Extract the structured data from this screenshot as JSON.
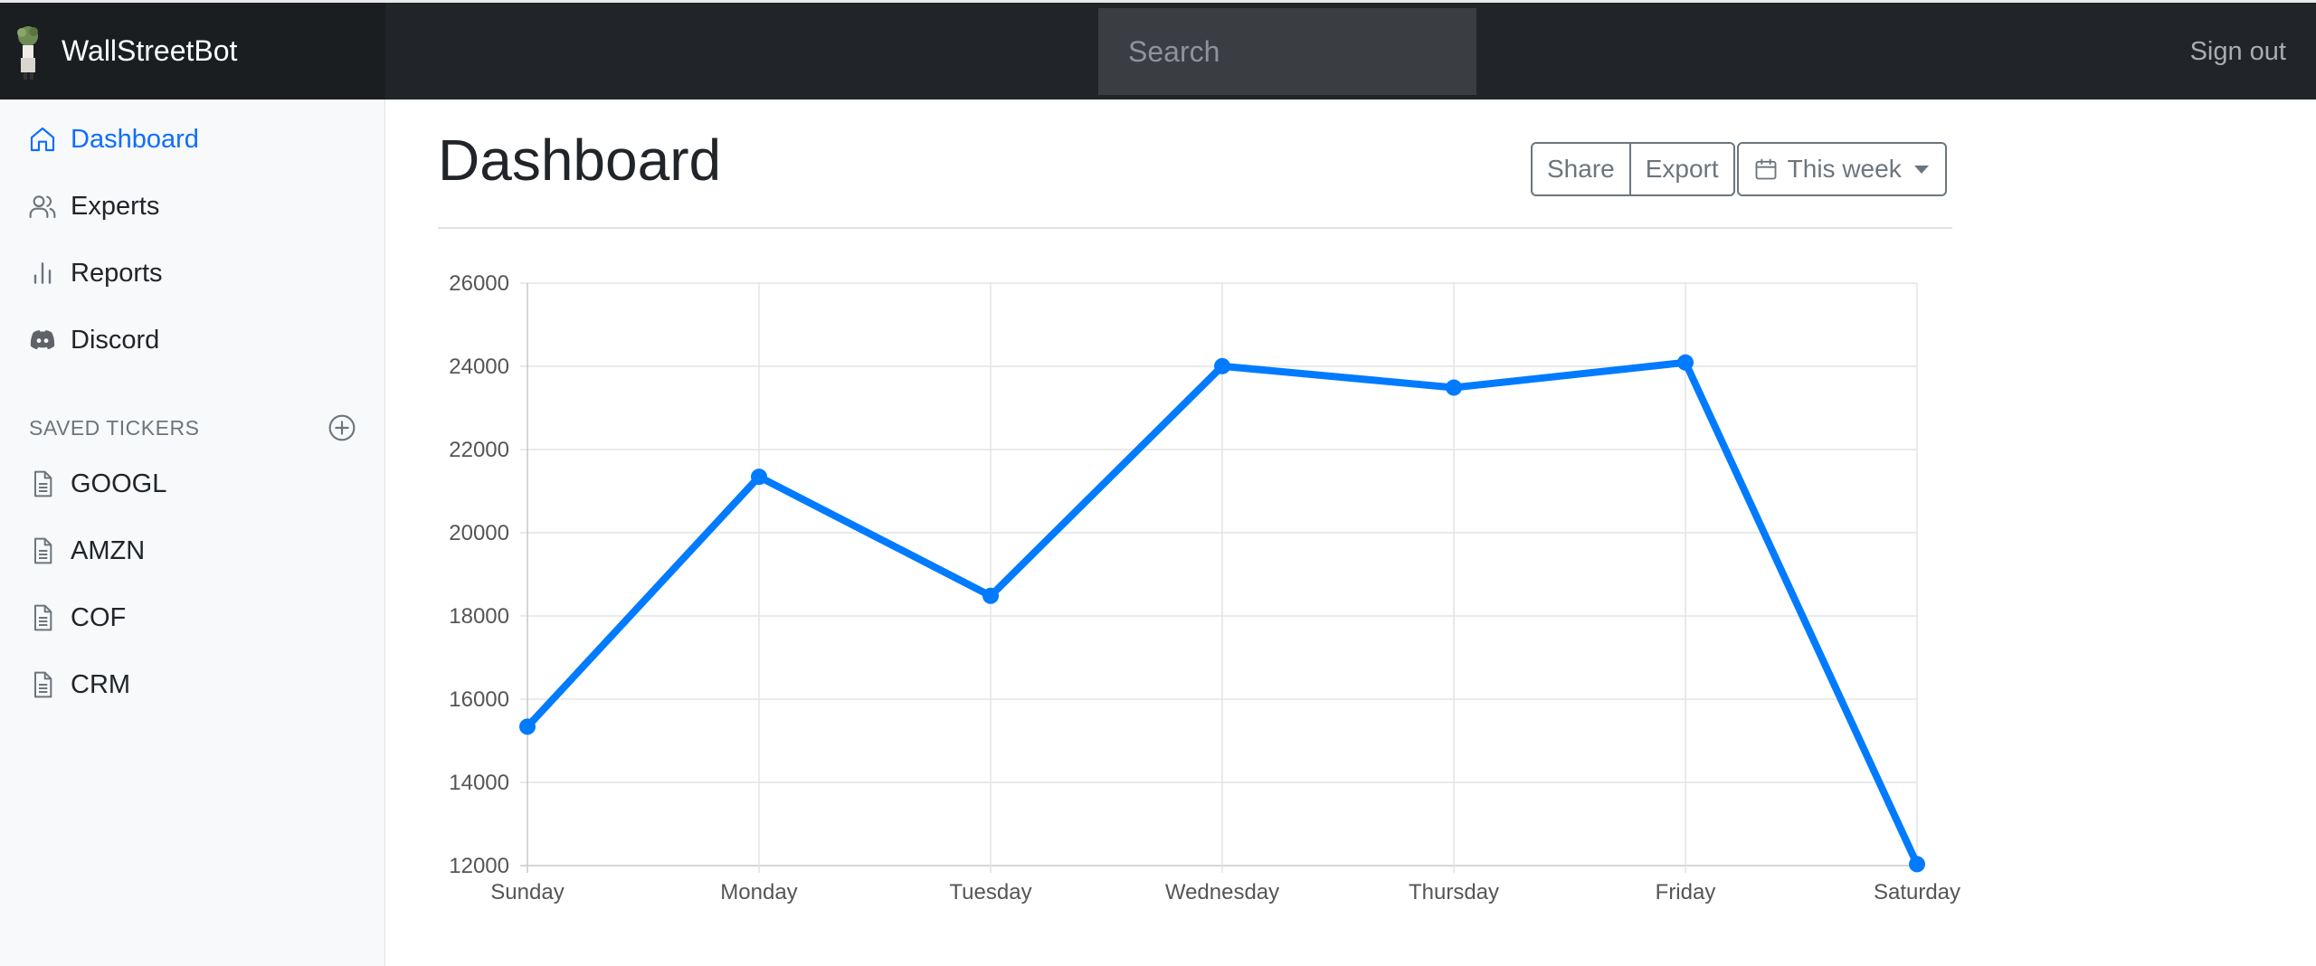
{
  "navbar": {
    "brand": "WallStreetBot",
    "search_placeholder": "Search",
    "signout": "Sign out"
  },
  "sidebar": {
    "items": [
      {
        "label": "Dashboard",
        "icon": "home-icon",
        "active": true
      },
      {
        "label": "Experts",
        "icon": "users-icon",
        "active": false
      },
      {
        "label": "Reports",
        "icon": "bar-chart-icon",
        "active": false
      },
      {
        "label": "Discord",
        "icon": "discord-icon",
        "active": false
      }
    ],
    "saved_heading": "SAVED TICKERS",
    "tickers": [
      {
        "label": "GOOGL",
        "icon": "file-text-icon"
      },
      {
        "label": "AMZN",
        "icon": "file-text-icon"
      },
      {
        "label": "COF",
        "icon": "file-text-icon"
      },
      {
        "label": "CRM",
        "icon": "file-text-icon"
      }
    ]
  },
  "main": {
    "title": "Dashboard",
    "share_label": "Share",
    "export_label": "Export",
    "period_label": "This week"
  },
  "colors": {
    "accent": "#0d6efd",
    "line": "#007bff",
    "navbar": "#212529"
  },
  "chart_data": {
    "type": "line",
    "categories": [
      "Sunday",
      "Monday",
      "Tuesday",
      "Wednesday",
      "Thursday",
      "Friday",
      "Saturday"
    ],
    "series": [
      {
        "values": [
          15339,
          21345,
          18483,
          24003,
          23489,
          24092,
          12034
        ]
      }
    ],
    "ylim": [
      12000,
      26000
    ],
    "yticks": [
      12000,
      14000,
      16000,
      18000,
      20000,
      22000,
      24000,
      26000
    ],
    "grid": true,
    "legend": false
  }
}
